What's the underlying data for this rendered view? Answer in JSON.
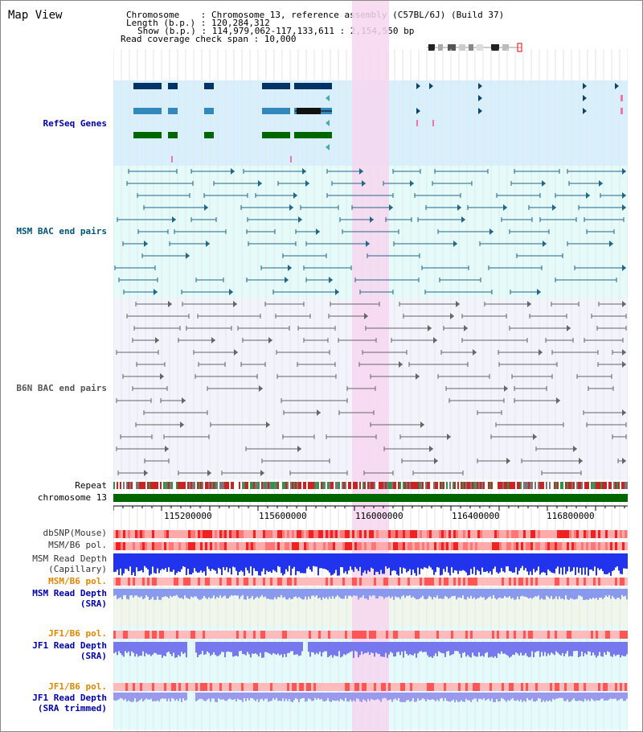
{
  "app": {
    "title": "Map View"
  },
  "header": {
    "chromosome_line": "Chromosome    : Chromosome 13, reference assembly (C57BL/6J) (Build 37)",
    "length_line": "Length (b.p.) : 120,284,312",
    "show_line": "Show (b.p.) : 114,979,062-117,133,611 : 2,154,550 bp",
    "span_line": "Read coverage check span : 10,000"
  },
  "tracks": {
    "refseq": "RefSeq Genes",
    "msm_bac": "MSM BAC end pairs",
    "b6n_bac": "B6N BAC end pairs",
    "repeat": "Repeat",
    "chromosome": "chromosome 13",
    "dbsnp": "dbSNP(Mouse)",
    "msm_b6_pol_1": "MSM/B6 pol.",
    "msm_read_depth_cap_1": "MSM Read Depth",
    "msm_read_depth_cap_2": "(Capillary)",
    "msm_b6_pol_2": "MSM/B6 pol.",
    "msm_read_depth_sra_1": "MSM Read Depth",
    "msm_read_depth_sra_2": "(SRA)",
    "jf1_b6_pol_1": "JF1/B6 pol.",
    "jf1_read_depth_sra_1": "JF1 Read Depth",
    "jf1_read_depth_sra_2": "(SRA)",
    "jf1_b6_pol_2": "JF1/B6 pol.",
    "jf1_read_depth_trim_1": "JF1 Read Depth",
    "jf1_read_depth_trim_2": "(SRA trimmed)"
  },
  "axis": {
    "ticks": [
      "115200000",
      "115600000",
      "116000000",
      "116400000",
      "116800000"
    ]
  },
  "colors": {
    "refseq_bg": "#d7f0fb",
    "msm_bg": "#e4fbf8",
    "b6n_bg": "#f3f3fb",
    "highlight": "#f7d6f0",
    "chromosome": "#006600",
    "label_blue": "#0000aa",
    "label_teal": "#005577",
    "label_gray": "#555555",
    "label_orange": "#dd8800"
  }
}
